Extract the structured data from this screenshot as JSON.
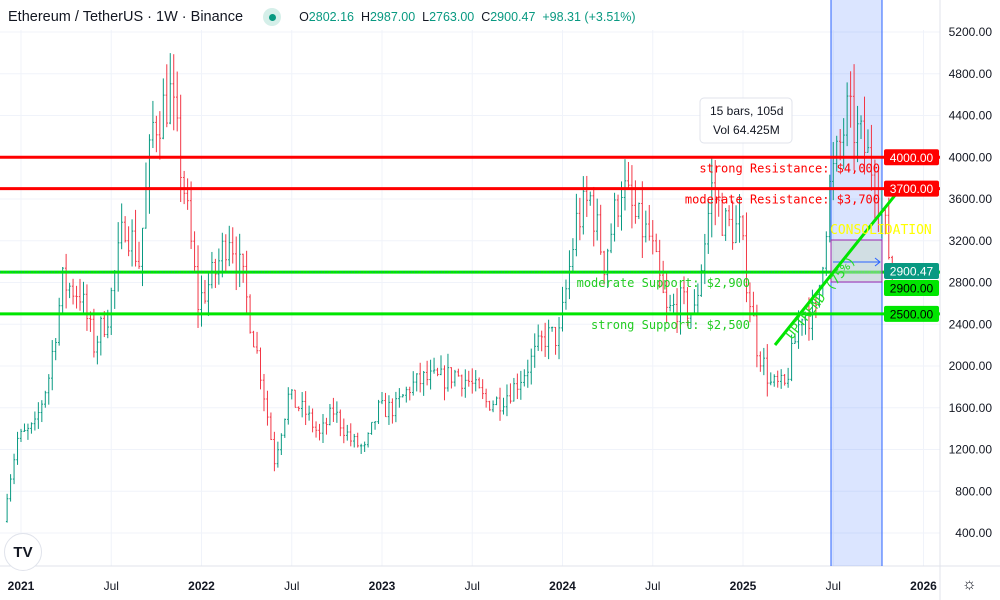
{
  "header": {
    "symbol": "Ethereum / TetherUS · 1W · Binance",
    "o_label": "O",
    "o": "2802.16",
    "h_label": "H",
    "h": "2987.00",
    "l_label": "L",
    "l": "2763.00",
    "c_label": "C",
    "c": "2900.47",
    "change": "+98.31 (+3.51%)",
    "status_icon": "market-open-dot-icon"
  },
  "logo": "TV",
  "settings_icon": "gear-icon",
  "colors": {
    "up": "#089981",
    "down": "#f23645",
    "resistance": "#ff0000",
    "support": "#00e600",
    "highlight": "#2962ff",
    "annotation": "#ffff00"
  },
  "chart_data": {
    "type": "candlestick",
    "interval": "1W",
    "x_ticks": [
      "2021",
      "Jul",
      "2022",
      "Jul",
      "2023",
      "Jul",
      "2024",
      "Jul",
      "2025",
      "Jul",
      "2026"
    ],
    "y_ticks": [
      "5200.00",
      "4800.00",
      "4400.00",
      "4000.00",
      "3600.00",
      "3200.00",
      "2800.00",
      "2400.00",
      "2000.00",
      "1600.00",
      "1200.00",
      "800.00",
      "400.00"
    ],
    "ylim": [
      400,
      5200
    ],
    "monthly_close_approx": {
      "start": "2020-12",
      "values": [
        600,
        1300,
        1420,
        1900,
        2800,
        2700,
        2200,
        2500,
        3400,
        3000,
        4300,
        4600,
        3700,
        2600,
        2900,
        3300,
        2800,
        1950,
        1100,
        1700,
        1550,
        1330,
        1570,
        1290,
        1200,
        1580,
        1600,
        1800,
        1870,
        1870,
        1930,
        1850,
        1650,
        1670,
        1800,
        2050,
        2280,
        2280,
        3380,
        3600,
        3000,
        3750,
        3400,
        3230,
        2500,
        2600,
        2500,
        3700,
        3350,
        3300,
        2200,
        1820,
        1800,
        2530,
        2480,
        3700,
        4400,
        4150,
        3850,
        2900
      ]
    },
    "last_price": 2900.47,
    "levels": [
      {
        "price": 4000,
        "badge": "4000.00",
        "label": "strong Resistance: $4,000",
        "kind": "resistance"
      },
      {
        "price": 3700,
        "badge": "3700.00",
        "label": "moderate Resistance: $3,700",
        "kind": "resistance"
      },
      {
        "price": 2900,
        "badge": "2900.00",
        "label": "moderate Support: $2,900",
        "kind": "support"
      },
      {
        "price": 2500,
        "badge": "2500.00",
        "label": "strong Support: $2,500",
        "kind": "support"
      }
    ],
    "last_badge": "2900.47",
    "trend_label": "UPTREND (75%)",
    "consolidation_label": "CONSOLIDATION",
    "range_tooltip": {
      "bars": "15 bars, 105d",
      "vol": "Vol 64.425M"
    }
  }
}
